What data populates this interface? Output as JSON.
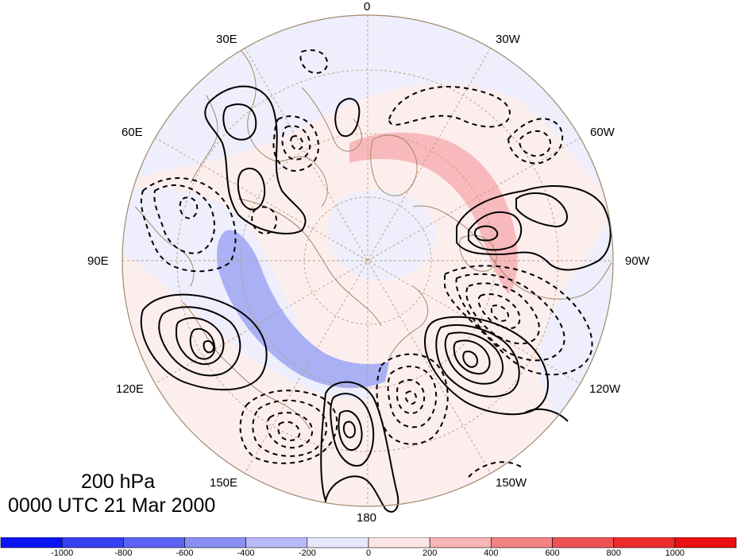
{
  "map": {
    "pressure_level": "200 hPa",
    "valid_time": "0000 UTC 21 Mar 2000",
    "longitude_labels": [
      {
        "key": "lon0",
        "text": "0"
      },
      {
        "key": "lon30w",
        "text": "30W"
      },
      {
        "key": "lon60w",
        "text": "60W"
      },
      {
        "key": "lon90w",
        "text": "90W"
      },
      {
        "key": "lon120w",
        "text": "120W"
      },
      {
        "key": "lon150w",
        "text": "150W"
      },
      {
        "key": "lon180",
        "text": "180"
      },
      {
        "key": "lon150e",
        "text": "150E"
      },
      {
        "key": "lon120e",
        "text": "120E"
      },
      {
        "key": "lon90e",
        "text": "90E"
      },
      {
        "key": "lon60e",
        "text": "60E"
      },
      {
        "key": "lon30e",
        "text": "30E"
      }
    ],
    "projection": "north polar stereographic",
    "overlay": "coastlines and country borders",
    "colors": {
      "coast": "#a0896a",
      "grid": "#b89f7a",
      "shade_pos_light": "#fdeeee",
      "shade_pos_strong": "#f8b9bd",
      "shade_neg_light": "#eeeefc",
      "shade_neg_strong": "#aab0f4"
    },
    "contours": {
      "positive_style": "solid black",
      "negative_style": "dashed black"
    }
  },
  "colorbar": {
    "ticks": [
      "-1000",
      "-800",
      "-600",
      "-400",
      "-200",
      "0",
      "200",
      "400",
      "600",
      "800",
      "1000"
    ],
    "colors": [
      "#0a14f5",
      "#3540f2",
      "#5c63f2",
      "#8a8ff3",
      "#b7baf7",
      "#e6e7fd",
      "#fde5e5",
      "#f8b4b6",
      "#f38284",
      "#ef5254",
      "#ec2b2c",
      "#ea0f10"
    ]
  }
}
